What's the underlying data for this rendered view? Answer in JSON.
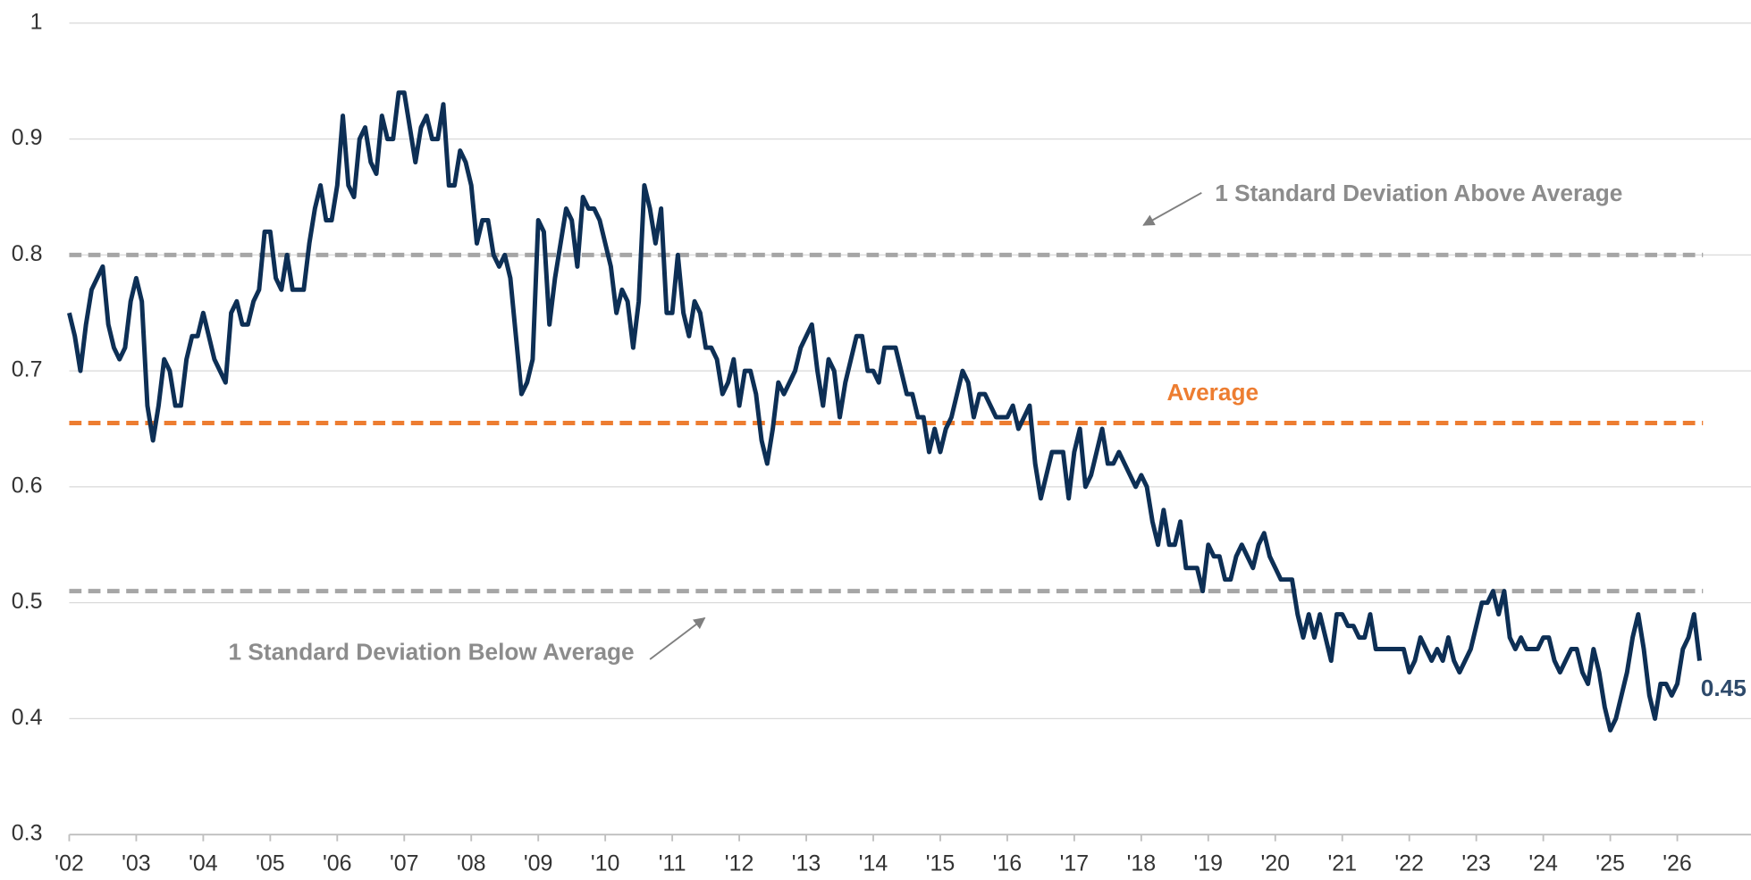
{
  "chart_data": {
    "type": "line",
    "categories": [
      "'02",
      null,
      null,
      null,
      null,
      null,
      null,
      null,
      null,
      null,
      null,
      null,
      "'03",
      null,
      null,
      null,
      null,
      null,
      null,
      null,
      null,
      null,
      null,
      null,
      "'04",
      null,
      null,
      null,
      null,
      null,
      null,
      null,
      null,
      null,
      null,
      null,
      "'05",
      null,
      null,
      null,
      null,
      null,
      null,
      null,
      null,
      null,
      null,
      null,
      "'06",
      null,
      null,
      null,
      null,
      null,
      null,
      null,
      null,
      null,
      null,
      null,
      "'07",
      null,
      null,
      null,
      null,
      null,
      null,
      null,
      null,
      null,
      null,
      null,
      "'08",
      null,
      null,
      null,
      null,
      null,
      null,
      null,
      null,
      null,
      null,
      null,
      "'09",
      null,
      null,
      null,
      null,
      null,
      null,
      null,
      null,
      null,
      null,
      null,
      "'10",
      null,
      null,
      null,
      null,
      null,
      null,
      null,
      null,
      null,
      null,
      null,
      "'11",
      null,
      null,
      null,
      null,
      null,
      null,
      null,
      null,
      null,
      null,
      null,
      "'12",
      null,
      null,
      null,
      null,
      null,
      null,
      null,
      null,
      null,
      null,
      null,
      "'13",
      null,
      null,
      null,
      null,
      null,
      null,
      null,
      null,
      null,
      null,
      null,
      "'14",
      null,
      null,
      null,
      null,
      null,
      null,
      null,
      null,
      null,
      null,
      null,
      "'15",
      null,
      null,
      null,
      null,
      null,
      null,
      null,
      null,
      null,
      null,
      null,
      "'16",
      null,
      null,
      null,
      null,
      null,
      null,
      null,
      null,
      null,
      null,
      null,
      "'17",
      null,
      null,
      null,
      null,
      null,
      null,
      null,
      null,
      null,
      null,
      null,
      "'18",
      null,
      null,
      null,
      null,
      null,
      null,
      null,
      null,
      null,
      null,
      null,
      "'19",
      null,
      null,
      null,
      null,
      null,
      null,
      null,
      null,
      null,
      null,
      null,
      "'20",
      null,
      null,
      null,
      null,
      null,
      null,
      null,
      null,
      null,
      null,
      null,
      "'21",
      null,
      null,
      null,
      null,
      null,
      null,
      null,
      null,
      null,
      null,
      null,
      "'22",
      null,
      null,
      null,
      null,
      null,
      null,
      null,
      null,
      null,
      null,
      null,
      "'23",
      null,
      null,
      null,
      null,
      null,
      null,
      null,
      null,
      null,
      null,
      null,
      "'24",
      null,
      null,
      null,
      null,
      null,
      null,
      null,
      null,
      null,
      null,
      null,
      "'25",
      null,
      null,
      null,
      null,
      null,
      null,
      null,
      null,
      null,
      null,
      null,
      "'26",
      null,
      null,
      null,
      null
    ],
    "series": [
      {
        "color": "#0d2f55",
        "values": [
          0.75,
          0.73,
          0.7,
          0.74,
          0.77,
          0.78,
          0.79,
          0.74,
          0.72,
          0.71,
          0.72,
          0.76,
          0.78,
          0.76,
          0.67,
          0.64,
          0.67,
          0.71,
          0.7,
          0.67,
          0.67,
          0.71,
          0.73,
          0.73,
          0.75,
          0.73,
          0.71,
          0.7,
          0.69,
          0.75,
          0.76,
          0.74,
          0.74,
          0.76,
          0.77,
          0.82,
          0.82,
          0.78,
          0.77,
          0.8,
          0.77,
          0.77,
          0.77,
          0.81,
          0.84,
          0.86,
          0.83,
          0.83,
          0.86,
          0.92,
          0.86,
          0.85,
          0.9,
          0.91,
          0.88,
          0.87,
          0.92,
          0.9,
          0.9,
          0.94,
          0.94,
          0.91,
          0.88,
          0.91,
          0.92,
          0.9,
          0.9,
          0.93,
          0.86,
          0.86,
          0.89,
          0.88,
          0.86,
          0.81,
          0.83,
          0.83,
          0.8,
          0.79,
          0.8,
          0.78,
          0.73,
          0.68,
          0.69,
          0.71,
          0.83,
          0.82,
          0.74,
          0.78,
          0.81,
          0.84,
          0.83,
          0.79,
          0.85,
          0.84,
          0.84,
          0.83,
          0.81,
          0.79,
          0.75,
          0.77,
          0.76,
          0.72,
          0.76,
          0.86,
          0.84,
          0.81,
          0.84,
          0.75,
          0.75,
          0.8,
          0.75,
          0.73,
          0.76,
          0.75,
          0.72,
          0.72,
          0.71,
          0.68,
          0.69,
          0.71,
          0.67,
          0.7,
          0.7,
          0.68,
          0.64,
          0.62,
          0.65,
          0.69,
          0.68,
          0.69,
          0.7,
          0.72,
          0.73,
          0.74,
          0.7,
          0.67,
          0.71,
          0.7,
          0.66,
          0.69,
          0.71,
          0.73,
          0.73,
          0.7,
          0.7,
          0.69,
          0.72,
          0.72,
          0.72,
          0.7,
          0.68,
          0.68,
          0.66,
          0.66,
          0.63,
          0.65,
          0.63,
          0.65,
          0.66,
          0.68,
          0.7,
          0.69,
          0.66,
          0.68,
          0.68,
          0.67,
          0.66,
          0.66,
          0.66,
          0.67,
          0.65,
          0.66,
          0.67,
          0.62,
          0.59,
          0.61,
          0.63,
          0.63,
          0.63,
          0.59,
          0.63,
          0.65,
          0.6,
          0.61,
          0.63,
          0.65,
          0.62,
          0.62,
          0.63,
          0.62,
          0.61,
          0.6,
          0.61,
          0.6,
          0.57,
          0.55,
          0.58,
          0.55,
          0.55,
          0.57,
          0.53,
          0.53,
          0.53,
          0.51,
          0.55,
          0.54,
          0.54,
          0.52,
          0.52,
          0.54,
          0.55,
          0.54,
          0.53,
          0.55,
          0.56,
          0.54,
          0.53,
          0.52,
          0.52,
          0.52,
          0.49,
          0.47,
          0.49,
          0.47,
          0.49,
          0.47,
          0.45,
          0.49,
          0.49,
          0.48,
          0.48,
          0.47,
          0.47,
          0.49,
          0.46,
          0.46,
          0.46,
          0.46,
          0.46,
          0.46,
          0.44,
          0.45,
          0.47,
          0.46,
          0.45,
          0.46,
          0.45,
          0.47,
          0.45,
          0.44,
          0.45,
          0.46,
          0.48,
          0.5,
          0.5,
          0.51,
          0.49,
          0.51,
          0.47,
          0.46,
          0.47,
          0.46,
          0.46,
          0.46,
          0.47,
          0.47,
          0.45,
          0.44,
          0.45,
          0.46,
          0.46,
          0.44,
          0.43,
          0.46,
          0.44,
          0.41,
          0.39,
          0.4,
          0.42,
          0.44,
          0.47,
          0.49,
          0.46,
          0.42,
          0.4,
          0.43,
          0.43,
          0.42,
          0.43,
          0.46,
          0.47,
          0.49,
          0.45
        ]
      }
    ],
    "ylim": [
      0.3,
      1
    ],
    "yticks": [
      0.3,
      0.4,
      0.5,
      0.6,
      0.7,
      0.8,
      0.9,
      1
    ],
    "grid": true,
    "reference_lines": [
      {
        "label": "1 Standard Deviation Above Average",
        "value": 0.8,
        "color": "#a6a6a6"
      },
      {
        "label": "Average",
        "value": 0.655,
        "color": "#ed7d31"
      },
      {
        "label": "1 Standard Deviation Below Average",
        "value": 0.51,
        "color": "#a6a6a6"
      }
    ]
  }
}
